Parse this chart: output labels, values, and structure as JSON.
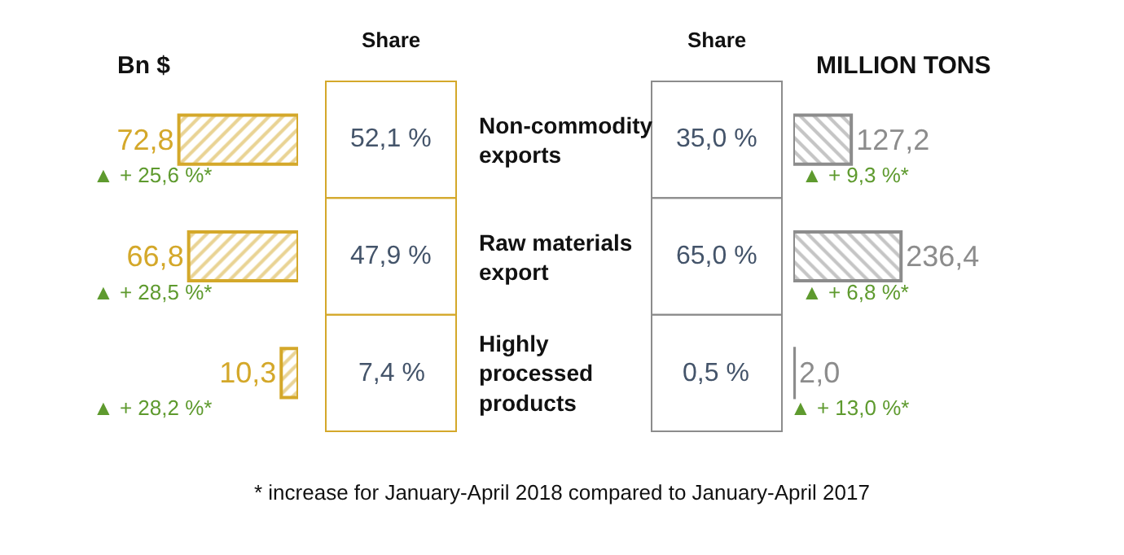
{
  "chart_data": [
    {
      "type": "bar",
      "orientation": "horizontal",
      "title": "Bn $",
      "categories": [
        "Non-commodity exports",
        "Raw materials export",
        "Highly processed products"
      ],
      "values": [
        72.8,
        66.8,
        10.3
      ],
      "value_labels": [
        "72,8",
        "66,8",
        "10,3"
      ],
      "color": "#d4a82a",
      "tick_labels": "y",
      "annotations": [
        "Share",
        "52,1 %",
        "47,9 %",
        "7,4 %",
        "▲ + 25,6 %*",
        "▲ + 28,5 %*",
        "▲ + 28,2 %*",
        "* increase for January-April 2018 compared to January-April 2017"
      ]
    },
    {
      "type": "bar",
      "orientation": "horizontal",
      "title": "MILLION TONS",
      "categories": [
        null,
        null,
        null
      ],
      "values": [
        127.2,
        236.4,
        2.0
      ],
      "value_labels": [
        "127,2",
        "236,4",
        "2,0"
      ],
      "color": "#8c8c8c",
      "tick_labels": false,
      "annotations": [
        "Share",
        "35,0 %",
        "65,0 %",
        "0,5 %",
        "▲ + 9,3 %*",
        "▲ + 6,8 %*",
        "▲ + 13,0 %*"
      ]
    }
  ]
}
